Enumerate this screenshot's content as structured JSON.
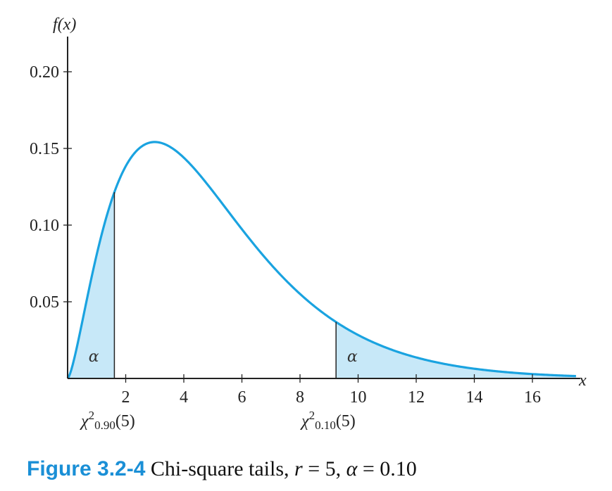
{
  "chart_data": {
    "type": "area",
    "distribution": "chi-square",
    "degrees_of_freedom": 5,
    "alpha": 0.1,
    "ylabel": "f(x)",
    "xlabel": "x",
    "xlim": [
      0,
      17.5
    ],
    "ylim": [
      0,
      0.22
    ],
    "x_ticks": [
      2,
      4,
      6,
      8,
      10,
      12,
      14,
      16
    ],
    "y_ticks": [
      {
        "value": 0.05,
        "label": "0.05"
      },
      {
        "value": 0.1,
        "label": "0.10"
      },
      {
        "value": 0.15,
        "label": "0.15"
      },
      {
        "value": 0.2,
        "label": "0.20"
      }
    ],
    "critical_values": [
      {
        "x": 1.61,
        "symbol": "χ",
        "superscript": "2",
        "subscript": "0.90",
        "suffix": "(5)"
      },
      {
        "x": 9.24,
        "symbol": "χ",
        "superscript": "2",
        "subscript": "0.10",
        "suffix": "(5)"
      }
    ],
    "shaded_regions": [
      {
        "from": 0,
        "to": 1.61,
        "label": "α"
      },
      {
        "from": 9.24,
        "to": 17.5,
        "label": "α"
      }
    ],
    "curve_color": "#1aa3e0",
    "fill_color": "#c7e8f8"
  },
  "caption": {
    "figure_label": "Figure 3.2-4",
    "text": " Chi-square tails, ",
    "var_r": "r",
    "eq_r": " = 5, ",
    "var_alpha": "α",
    "eq_alpha": " = 0.10"
  }
}
